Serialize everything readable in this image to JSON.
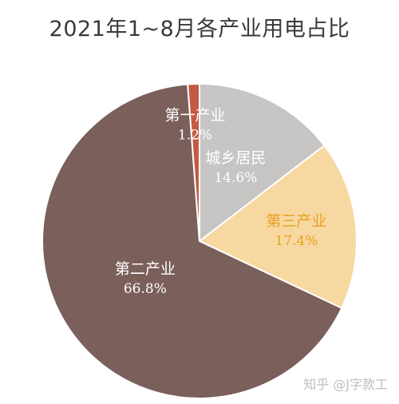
{
  "chart_data": {
    "type": "pie",
    "title": "2021年1~8月各产业用电占比",
    "slices": [
      {
        "label": "城乡居民",
        "value": 14.6,
        "value_label": "14.6%",
        "color": "#c7c5c4",
        "text_color": "#ffffff"
      },
      {
        "label": "第三产业",
        "value": 17.4,
        "value_label": "17.4%",
        "color": "#f7d8a0",
        "text_color": "#e8a020"
      },
      {
        "label": "第二产业",
        "value": 66.8,
        "value_label": "66.8%",
        "color": "#7a5f5b",
        "text_color": "#ffffff"
      },
      {
        "label": "第一产业",
        "value": 1.2,
        "value_label": "1.2%",
        "color": "#c45a43",
        "text_color": "#ffffff"
      }
    ],
    "start": "12 o'clock",
    "direction": "clockwise"
  },
  "watermark": "知乎 @J字款工"
}
